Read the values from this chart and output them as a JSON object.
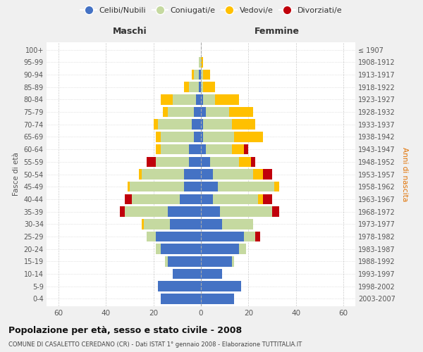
{
  "age_groups": [
    "0-4",
    "5-9",
    "10-14",
    "15-19",
    "20-24",
    "25-29",
    "30-34",
    "35-39",
    "40-44",
    "45-49",
    "50-54",
    "55-59",
    "60-64",
    "65-69",
    "70-74",
    "75-79",
    "80-84",
    "85-89",
    "90-94",
    "95-99",
    "100+"
  ],
  "birth_years": [
    "2003-2007",
    "1998-2002",
    "1993-1997",
    "1988-1992",
    "1983-1987",
    "1978-1982",
    "1973-1977",
    "1968-1972",
    "1963-1967",
    "1958-1962",
    "1953-1957",
    "1948-1952",
    "1943-1947",
    "1938-1942",
    "1933-1937",
    "1928-1932",
    "1923-1927",
    "1918-1922",
    "1913-1917",
    "1908-1912",
    "≤ 1907"
  ],
  "male_celibe": [
    17,
    18,
    12,
    14,
    17,
    19,
    13,
    14,
    9,
    7,
    7,
    5,
    5,
    3,
    4,
    3,
    2,
    1,
    1,
    0,
    0
  ],
  "male_coniugato": [
    0,
    0,
    0,
    1,
    2,
    4,
    11,
    18,
    20,
    23,
    18,
    14,
    12,
    14,
    14,
    11,
    10,
    4,
    2,
    1,
    0
  ],
  "male_vedovo": [
    0,
    0,
    0,
    0,
    0,
    0,
    1,
    0,
    0,
    1,
    1,
    0,
    2,
    2,
    2,
    2,
    5,
    2,
    1,
    0,
    0
  ],
  "male_divorziato": [
    0,
    0,
    0,
    0,
    0,
    0,
    0,
    2,
    3,
    0,
    0,
    4,
    0,
    0,
    0,
    0,
    0,
    0,
    0,
    0,
    0
  ],
  "female_celibe": [
    14,
    17,
    9,
    13,
    16,
    18,
    9,
    8,
    5,
    7,
    5,
    4,
    2,
    1,
    1,
    2,
    1,
    0,
    0,
    0,
    0
  ],
  "female_coniugato": [
    0,
    0,
    0,
    1,
    3,
    5,
    13,
    22,
    19,
    24,
    17,
    12,
    11,
    13,
    12,
    10,
    5,
    1,
    1,
    0,
    0
  ],
  "female_vedovo": [
    0,
    0,
    0,
    0,
    0,
    0,
    0,
    0,
    2,
    2,
    4,
    5,
    5,
    12,
    10,
    10,
    10,
    5,
    3,
    1,
    0
  ],
  "female_divorziato": [
    0,
    0,
    0,
    0,
    0,
    2,
    0,
    3,
    4,
    0,
    4,
    2,
    2,
    0,
    0,
    0,
    0,
    0,
    0,
    0,
    0
  ],
  "color_celibe": "#4472c4",
  "color_coniugato": "#c5d9a0",
  "color_vedovo": "#ffc000",
  "color_divorziato": "#c0000b",
  "xlim": 65,
  "title": "Popolazione per età, sesso e stato civile - 2008",
  "subtitle": "COMUNE DI CASALETTO CEREDANO (CR) - Dati ISTAT 1° gennaio 2008 - Elaborazione TUTTITALIA.IT",
  "bg_color": "#f0f0f0",
  "bar_bg_color": "#ffffff"
}
